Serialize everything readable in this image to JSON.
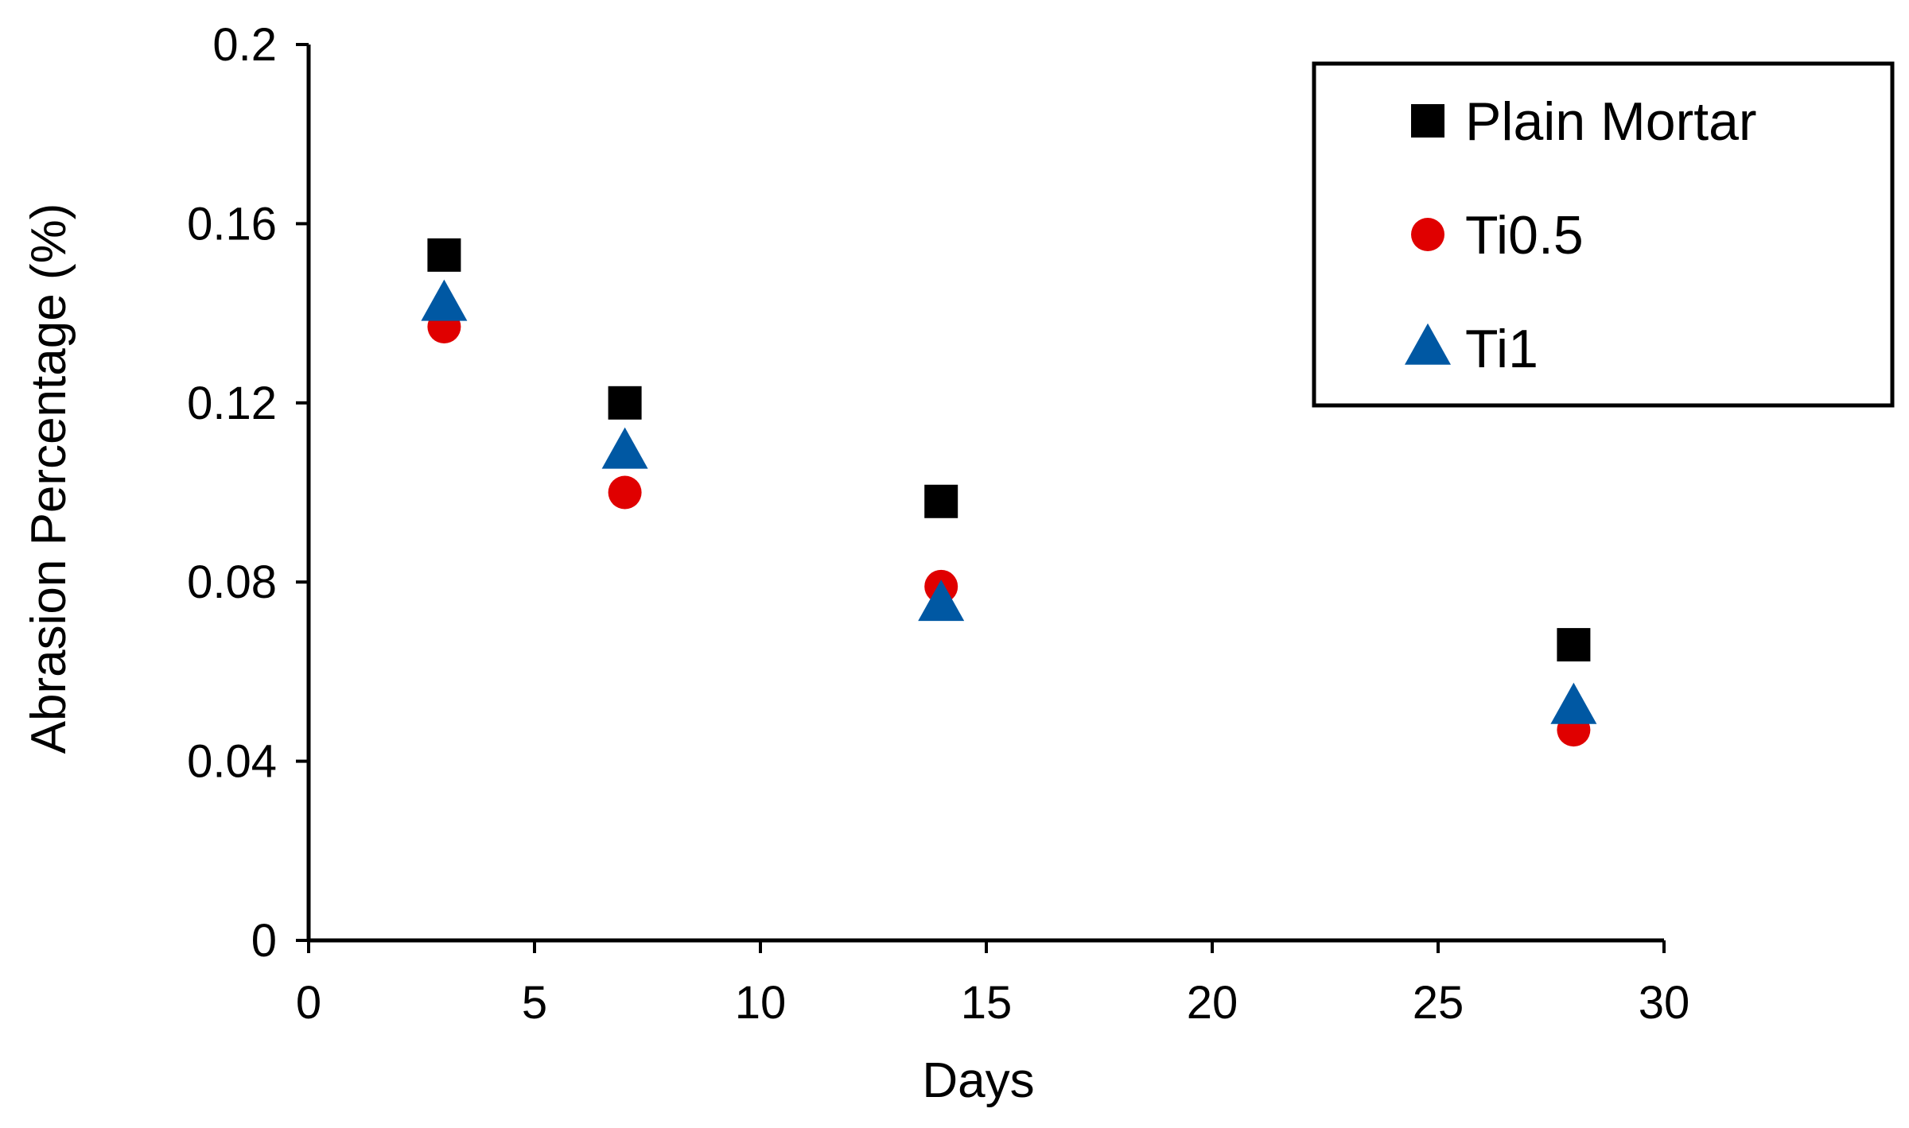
{
  "chart_data": {
    "type": "scatter",
    "title": "",
    "xlabel": "Days",
    "ylabel": "Abrasion Percentage (%)",
    "xlim": [
      0,
      30
    ],
    "ylim": [
      0,
      0.2
    ],
    "xticks": [
      "0",
      "5",
      "10",
      "15",
      "20",
      "25",
      "30"
    ],
    "yticks": [
      "0",
      "0.04",
      "0.08",
      "0.12",
      "0.16",
      "0.2"
    ],
    "grid": false,
    "legend_position": "top-right",
    "series": [
      {
        "name": "Plain Mortar",
        "marker": "square",
        "color": "#000000",
        "x": [
          3,
          7,
          14,
          28
        ],
        "y": [
          0.153,
          0.12,
          0.098,
          0.066
        ]
      },
      {
        "name": "Ti0.5",
        "marker": "circle",
        "color": "#e00000",
        "x": [
          3,
          7,
          14,
          28
        ],
        "y": [
          0.137,
          0.1,
          0.079,
          0.047
        ]
      },
      {
        "name": "Ti1",
        "marker": "triangle",
        "color": "#0058a3",
        "x": [
          3,
          7,
          14,
          28
        ],
        "y": [
          0.142,
          0.109,
          0.075,
          0.052
        ]
      }
    ]
  }
}
